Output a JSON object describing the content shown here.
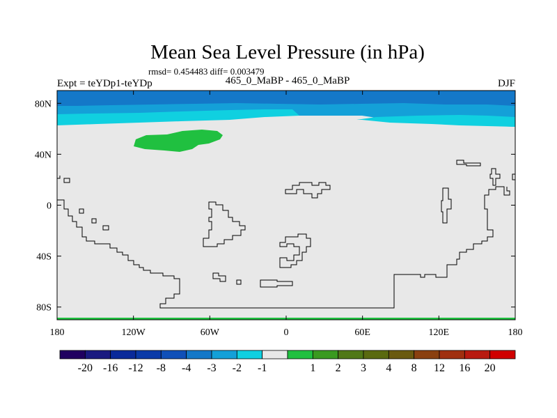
{
  "title": "Mean Sea Level Pressure (in hPa)",
  "stats": "rmsd= 0.454483 diff= 0.003479",
  "left_label": "Expt = teYDp1-teYDp",
  "center_label": "465_0_MaBP - 465_0_MaBP",
  "right_label": "DJF",
  "map": {
    "lon_range": [
      -180,
      180
    ],
    "lat_range": [
      -90,
      90
    ],
    "x_ticks": [
      {
        "value": -180,
        "label": "180"
      },
      {
        "value": -120,
        "label": "120W"
      },
      {
        "value": -60,
        "label": "60W"
      },
      {
        "value": 0,
        "label": "0"
      },
      {
        "value": 60,
        "label": "60E"
      },
      {
        "value": 120,
        "label": "120E"
      },
      {
        "value": 180,
        "label": "180"
      }
    ],
    "y_ticks": [
      {
        "value": 80,
        "label": "80N"
      },
      {
        "value": 40,
        "label": "40N"
      },
      {
        "value": 0,
        "label": "0"
      },
      {
        "value": -40,
        "label": "40S"
      },
      {
        "value": -80,
        "label": "80S"
      }
    ],
    "background_color": "#e8e8e8"
  },
  "colorbar": {
    "colors": [
      "#200060",
      "#1a1a80",
      "#0a2a9a",
      "#0a3aa8",
      "#1050b8",
      "#1478c8",
      "#14a0d8",
      "#10d0e0",
      "#e8e8e8",
      "#20c040",
      "#3a9a20",
      "#507818",
      "#5a6a10",
      "#6a5a10",
      "#8a4010",
      "#a03010",
      "#b81a10",
      "#d00000"
    ],
    "labels": [
      "-20",
      "-16",
      "-12",
      "-8",
      "-4",
      "-3",
      "-2",
      "-1",
      "1",
      "2",
      "3",
      "4",
      "8",
      "12",
      "16",
      "20"
    ]
  }
}
